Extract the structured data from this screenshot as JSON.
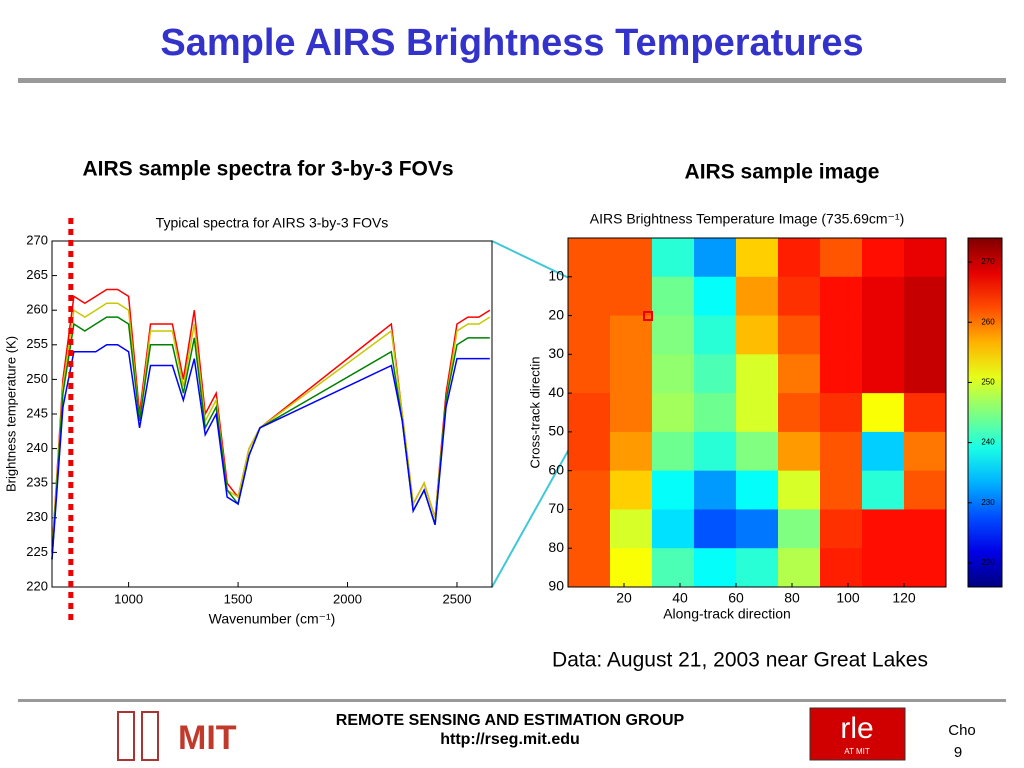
{
  "slide": {
    "title": "Sample AIRS Brightness Temperatures",
    "left_heading": "AIRS sample spectra for 3-by-3 FOVs",
    "right_heading": "AIRS sample image",
    "caption": "Data: August 21, 2003 near Great Lakes",
    "footer": {
      "group": "REMOTE SENSING AND ESTIMATION GROUP",
      "url": "http://rseg.mit.edu",
      "mit": "MIT",
      "rle": "rle",
      "rle_sub": "AT MIT",
      "author": "Cho",
      "page": "9"
    }
  },
  "chart_data": [
    {
      "type": "line",
      "title": "Typical spectra for AIRS 3-by-3 FOVs",
      "x_label": "Wavenumber (cm⁻¹)",
      "y_label": "Brightness temperature (K)",
      "x": [
        650,
        700,
        750,
        800,
        850,
        900,
        950,
        1000,
        1050,
        1100,
        1150,
        1200,
        1250,
        1300,
        1350,
        1400,
        1450,
        1500,
        1550,
        1600,
        2200,
        2250,
        2300,
        2350,
        2400,
        2450,
        2500,
        2550,
        2600,
        2650
      ],
      "series": [
        {
          "color": "#ff0000",
          "values": [
            225,
            250,
            262,
            261,
            262,
            263,
            263,
            262,
            245,
            258,
            258,
            258,
            250,
            260,
            245,
            248,
            235,
            233,
            240,
            243,
            258,
            245,
            232,
            235,
            230,
            248,
            258,
            259,
            259,
            260
          ]
        },
        {
          "color": "#c8c800",
          "values": [
            225,
            249,
            260,
            259,
            260,
            261,
            261,
            260,
            244,
            257,
            257,
            257,
            249,
            258,
            244,
            247,
            234,
            233,
            240,
            243,
            257,
            245,
            232,
            235,
            230,
            247,
            257,
            258,
            258,
            259
          ]
        },
        {
          "color": "#008000",
          "values": [
            224,
            248,
            258,
            257,
            258,
            259,
            259,
            258,
            244,
            255,
            255,
            255,
            248,
            256,
            243,
            246,
            234,
            232,
            239,
            243,
            254,
            244,
            231,
            234,
            229,
            247,
            255,
            256,
            256,
            256
          ]
        },
        {
          "color": "#0000ff",
          "values": [
            224,
            246,
            254,
            254,
            254,
            255,
            255,
            254,
            243,
            252,
            252,
            252,
            247,
            253,
            242,
            245,
            233,
            232,
            239,
            243,
            252,
            244,
            231,
            234,
            229,
            246,
            253,
            253,
            253,
            253
          ]
        }
      ],
      "highlight_x": 736,
      "xlim": [
        650,
        2660
      ],
      "xticks": [
        1000,
        1500,
        2000,
        2500
      ],
      "ylim": [
        220,
        270
      ],
      "yticks": [
        220,
        225,
        230,
        235,
        240,
        245,
        250,
        255,
        260,
        265,
        270
      ]
    },
    {
      "type": "heatmap",
      "title": "AIRS Brightness Temperature Image (735.69cm⁻¹)",
      "x_label": "Along-track direction",
      "y_label": "Cross-track directin",
      "xlim": [
        0,
        135
      ],
      "xticks": [
        20,
        40,
        60,
        80,
        100,
        120
      ],
      "ylim": [
        0,
        90
      ],
      "yticks": [
        10,
        20,
        30,
        40,
        50,
        60,
        70,
        80,
        90
      ],
      "clim": [
        216,
        274
      ],
      "cticks": [
        220,
        230,
        240,
        250,
        260,
        270
      ],
      "z": [
        [
          262,
          262,
          240,
          232,
          255,
          265,
          262,
          266,
          268
        ],
        [
          262,
          262,
          244,
          238,
          258,
          264,
          266,
          268,
          270
        ],
        [
          262,
          260,
          245,
          240,
          256,
          262,
          266,
          268,
          270
        ],
        [
          262,
          260,
          246,
          242,
          250,
          260,
          266,
          268,
          270
        ],
        [
          263,
          260,
          247,
          244,
          250,
          262,
          264,
          252,
          264
        ],
        [
          263,
          258,
          244,
          240,
          245,
          258,
          262,
          235,
          260
        ],
        [
          262,
          255,
          238,
          232,
          238,
          250,
          262,
          240,
          262
        ],
        [
          262,
          250,
          236,
          228,
          230,
          245,
          264,
          266,
          266
        ],
        [
          262,
          252,
          242,
          238,
          240,
          248,
          265,
          266,
          266
        ]
      ]
    }
  ]
}
